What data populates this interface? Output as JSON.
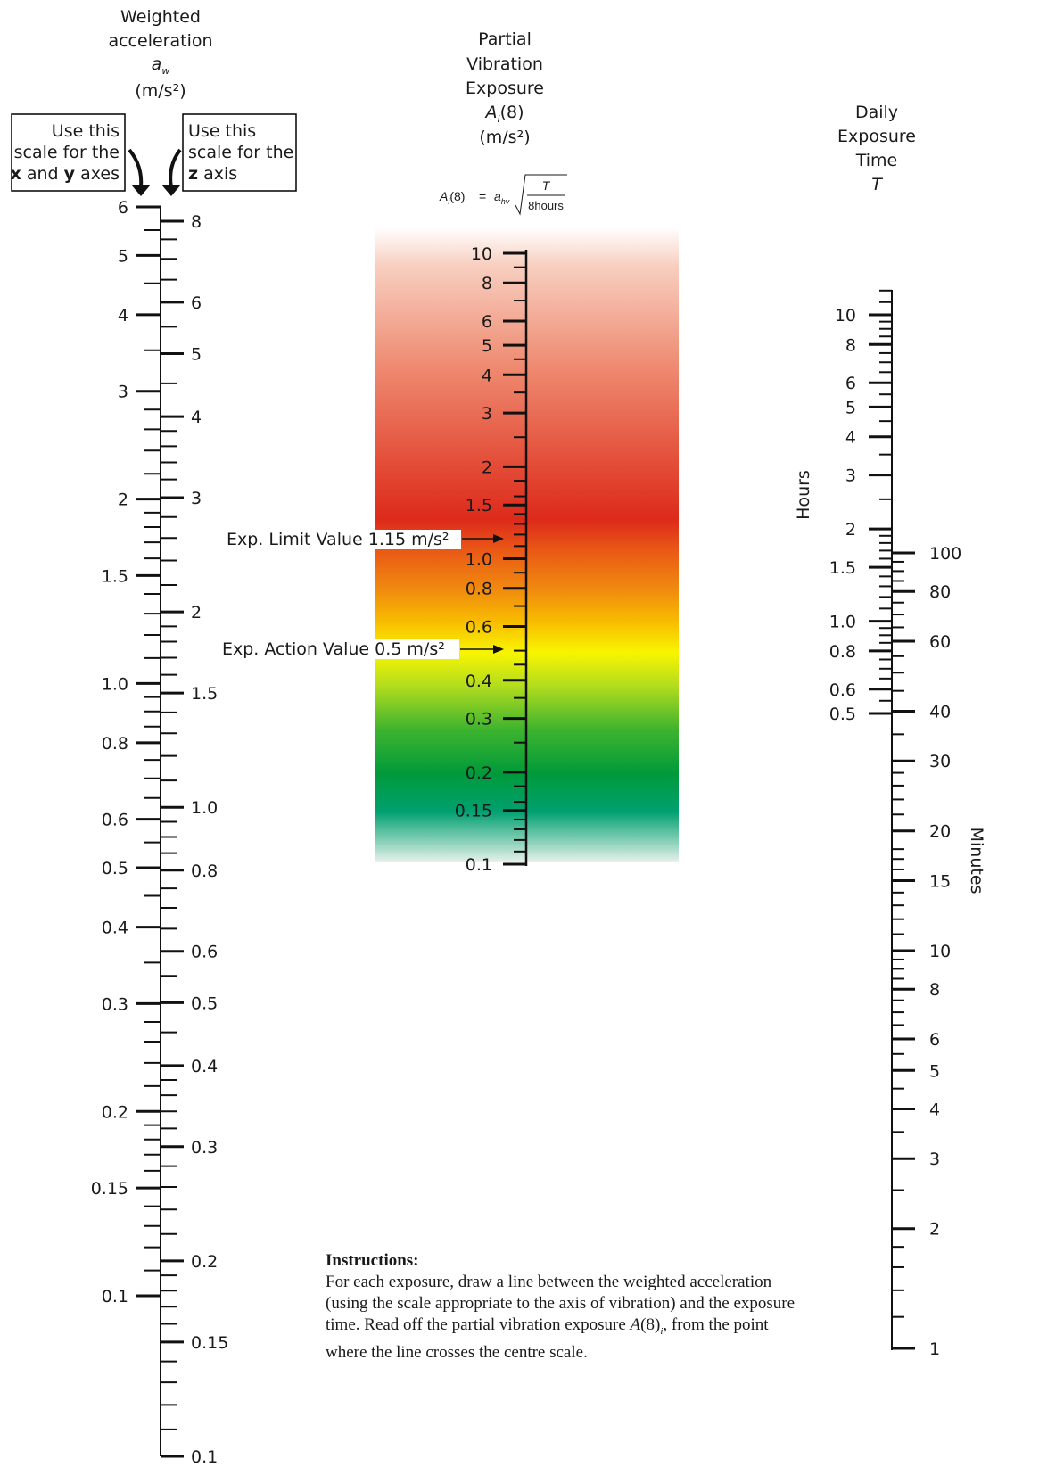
{
  "left_scale": {
    "title": [
      "Weighted",
      "acceleration"
    ],
    "symbol": "a",
    "symbol_sub": "w",
    "unit": "(m/s²)",
    "note_xy": [
      "Use this",
      "scale for the",
      "axes"
    ],
    "note_xy_bold": [
      "x",
      "y"
    ],
    "note_xy_and": "and",
    "note_z": [
      "Use this",
      "scale for the",
      "axis"
    ],
    "note_z_bold": "z",
    "xy_labels": [
      "6",
      "5",
      "4",
      "3",
      "2",
      "1.5",
      "1.0",
      "0.8",
      "0.6",
      "0.5",
      "0.4",
      "0.3",
      "0.2",
      "0.15",
      "0.1"
    ],
    "z_labels": [
      "8",
      "6",
      "5",
      "4",
      "3",
      "2",
      "1.5",
      "1.0",
      "0.8",
      "0.6",
      "0.5",
      "0.4",
      "0.3",
      "0.2",
      "0.15",
      "0.1"
    ]
  },
  "center_scale": {
    "title": [
      "Partial",
      "Vibration",
      "Exposure"
    ],
    "symbol": "A",
    "symbol_sub": "i",
    "symbol_tail": "(8)",
    "unit": "(m/s²)",
    "formula": {
      "lhs_A": "A",
      "lhs_sub": "i",
      "lhs_tail": "(8)",
      "eq": "=",
      "a": "a",
      "a_sub": "hv",
      "num": "T",
      "den": "8hours"
    },
    "labels": [
      "10",
      "8",
      "6",
      "5",
      "4",
      "3",
      "2",
      "1.5",
      "1.0",
      "0.8",
      "0.6",
      "0.4",
      "0.3",
      "0.2",
      "0.15",
      "0.1"
    ],
    "limit": {
      "prefix": "Exp. Limit Value ",
      "value": "1.15 m/s²",
      "level": 1.15
    },
    "action": {
      "prefix": "Exp. Action Value ",
      "value": "0.5 m/s²",
      "level": 0.5
    },
    "colors": {
      "light_red": "#f8cfc0",
      "red": "#dd2a1b",
      "orange": "#f07a10",
      "amber": "#f8bb00",
      "yellow": "#f8f500",
      "green": "#009a3a",
      "teal": "#00a070",
      "fade": "#e8f2ec"
    }
  },
  "right_scale": {
    "title": [
      "Daily",
      "Exposure",
      "Time"
    ],
    "symbol": "T",
    "hours_label": "Hours",
    "minutes_label": "Minutes",
    "hour_labels": [
      "10",
      "8",
      "6",
      "5",
      "4",
      "3",
      "2",
      "1.5",
      "1.0",
      "0.8",
      "0.6",
      "0.5"
    ],
    "minute_labels": [
      "100",
      "80",
      "60",
      "40",
      "30",
      "20",
      "15",
      "10",
      "8",
      "6",
      "5",
      "4",
      "3",
      "2",
      "1"
    ]
  },
  "instructions": {
    "heading": "Instructions:",
    "text_1": "For each exposure, draw a line between the weighted acceleration (using the scale appropriate to the axis of vibration) and the exposure time. Read off the partial vibration exposure ",
    "text_a8": "A",
    "text_tail": "(8)",
    "text_sub": "i",
    "text_2": ", from the point  where the line crosses the centre scale."
  }
}
